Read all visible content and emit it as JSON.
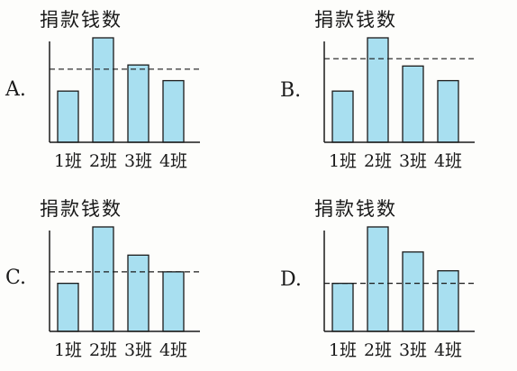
{
  "chart_data": [
    {
      "type": "bar",
      "option_label": "A.",
      "ylabel": "捐款钱数",
      "categories": [
        "1班",
        "2班",
        "3班",
        "4班"
      ],
      "values": [
        49,
        100,
        74,
        59
      ],
      "reference_line": 70,
      "ylim": [
        0,
        100
      ]
    },
    {
      "type": "bar",
      "option_label": "B.",
      "ylabel": "捐款钱数",
      "categories": [
        "1班",
        "2班",
        "3班",
        "4班"
      ],
      "values": [
        49,
        100,
        73,
        59
      ],
      "reference_line": 80,
      "ylim": [
        0,
        100
      ]
    },
    {
      "type": "bar",
      "option_label": "C.",
      "ylabel": "捐款钱数",
      "categories": [
        "1班",
        "2班",
        "3班",
        "4班"
      ],
      "values": [
        46,
        100,
        73,
        57
      ],
      "reference_line": 57,
      "ylim": [
        0,
        100
      ]
    },
    {
      "type": "bar",
      "option_label": "D.",
      "ylabel": "捐款钱数",
      "categories": [
        "1班",
        "2班",
        "3班",
        "4班"
      ],
      "values": [
        46,
        100,
        76,
        58
      ],
      "reference_line": 46,
      "ylim": [
        0,
        100
      ]
    }
  ],
  "colors": {
    "bar_fill": "#a8dff0",
    "bar_stroke": "#1a1a1a",
    "axis": "#1a1a1a",
    "reference_line": "#1a1a1a"
  }
}
